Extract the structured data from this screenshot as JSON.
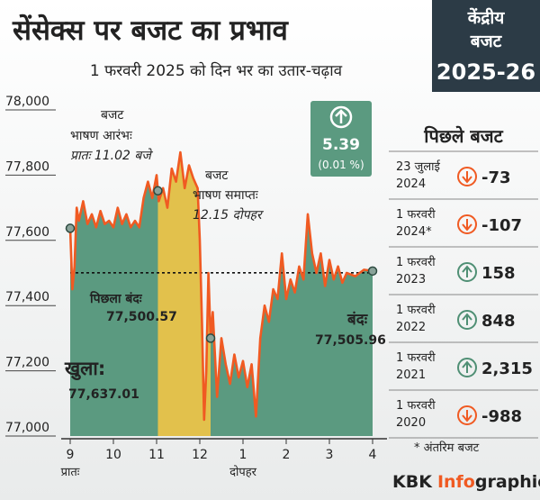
{
  "header": {
    "title": "सेंसेक्स पर बजट का प्रभाव",
    "subtitle": "1 फरवरी 2025 को दिन भर का उतार-चढ़ाव",
    "badge": [
      "केंद्रीय",
      "बजट",
      "2025-26"
    ]
  },
  "chart_data": {
    "type": "line",
    "x": [
      9.0,
      9.05,
      9.1,
      9.15,
      9.2,
      9.3,
      9.4,
      9.5,
      9.6,
      9.7,
      9.8,
      9.9,
      10.0,
      10.1,
      10.2,
      10.3,
      10.4,
      10.5,
      10.6,
      10.7,
      10.8,
      10.9,
      11.0,
      11.05,
      11.15,
      11.25,
      11.35,
      11.45,
      11.55,
      11.65,
      11.75,
      11.85,
      11.95,
      12.0,
      12.05,
      12.1,
      12.15,
      12.2,
      12.25,
      12.3,
      12.4,
      12.5,
      12.6,
      12.7,
      12.8,
      12.9,
      13.0,
      13.1,
      13.2,
      13.3,
      13.4,
      13.5,
      13.6,
      13.7,
      13.8,
      13.9,
      14.0,
      14.1,
      14.2,
      14.3,
      14.4,
      14.5,
      14.6,
      14.7,
      14.8,
      14.9,
      15.0,
      15.1,
      15.2,
      15.3,
      15.4,
      15.6,
      15.8,
      16.0
    ],
    "series": [
      {
        "color": "#f05a22",
        "area_color": "#5b9a80",
        "values": [
          77637.01,
          77450,
          77520,
          77700,
          77660,
          77720,
          77650,
          77680,
          77640,
          77690,
          77650,
          77660,
          77640,
          77700,
          77650,
          77680,
          77640,
          77660,
          77640,
          77730,
          77780,
          77730,
          77800,
          77720,
          77760,
          77700,
          77820,
          77780,
          77870,
          77760,
          77830,
          77790,
          77760,
          77600,
          77350,
          77050,
          77200,
          77500,
          77300,
          77380,
          77120,
          77300,
          77220,
          77160,
          77250,
          77180,
          77230,
          77150,
          77220,
          77060,
          77300,
          77400,
          77350,
          77450,
          77420,
          77560,
          77420,
          77480,
          77440,
          77520,
          77480,
          77680,
          77560,
          77500,
          77560,
          77460,
          77540,
          77480,
          77520,
          77470,
          77500,
          77490,
          77510,
          77505.96
        ]
      }
    ],
    "xlim": [
      9,
      16
    ],
    "xticks": [
      9,
      10,
      11,
      12,
      {
        "value": 13,
        "label": "1"
      },
      {
        "value": 14,
        "label": "2"
      },
      {
        "value": 15,
        "label": "3"
      },
      {
        "value": 16,
        "label": "4"
      }
    ],
    "x_period_labels": [
      {
        "value": 9,
        "label": "प्रातः"
      },
      {
        "value": 13,
        "label": "दोपहर"
      }
    ],
    "ylim": [
      77000,
      78000
    ],
    "yticks": [
      {
        "value": 77000,
        "label": "77,000"
      },
      {
        "value": 77200,
        "label": "77,200"
      },
      {
        "value": 77400,
        "label": "77,400"
      },
      {
        "value": 77600,
        "label": "77,600"
      },
      {
        "value": 77800,
        "label": "77,800"
      },
      {
        "value": 78000,
        "label": "78,000"
      }
    ],
    "band": [
      11.03,
      12.25
    ],
    "band_color": "#e2c14c",
    "previous_close": {
      "label": "पिछला बंदः",
      "value": 77500.57,
      "value_label": "77,500.57"
    },
    "annotations": {
      "speech_start": [
        "बजट",
        "भाषण आरंभः",
        "प्रातः 11.02 बजे"
      ],
      "speech_end": [
        "बजट",
        "भाषण समाप्तः",
        "12.15 दोपहर"
      ],
      "open": [
        "खुला:",
        "77,637.01"
      ],
      "close": [
        "बंदः",
        "77,505.96"
      ]
    },
    "change": {
      "value": 5.39,
      "percent_label": "(0.01 %)"
    }
  },
  "sidebar": {
    "title": "पिछले बजट",
    "rows": [
      {
        "date": [
          "23 जुलाई",
          "2024"
        ],
        "change": "-73"
      },
      {
        "date": [
          "1 फरवरी",
          "2024*"
        ],
        "change": "-107"
      },
      {
        "date": [
          "1 फरवरी",
          "2023"
        ],
        "change": "158"
      },
      {
        "date": [
          "1 फरवरी",
          "2022"
        ],
        "change": "848"
      },
      {
        "date": [
          "1 फरवरी",
          "2021"
        ],
        "change": "2,315"
      },
      {
        "date": [
          "1 फरवरी",
          "2020"
        ],
        "change": "-988"
      }
    ],
    "footnote": "* अंतरिम बजट"
  },
  "brand": [
    "KBK",
    "Info",
    "graphics"
  ]
}
